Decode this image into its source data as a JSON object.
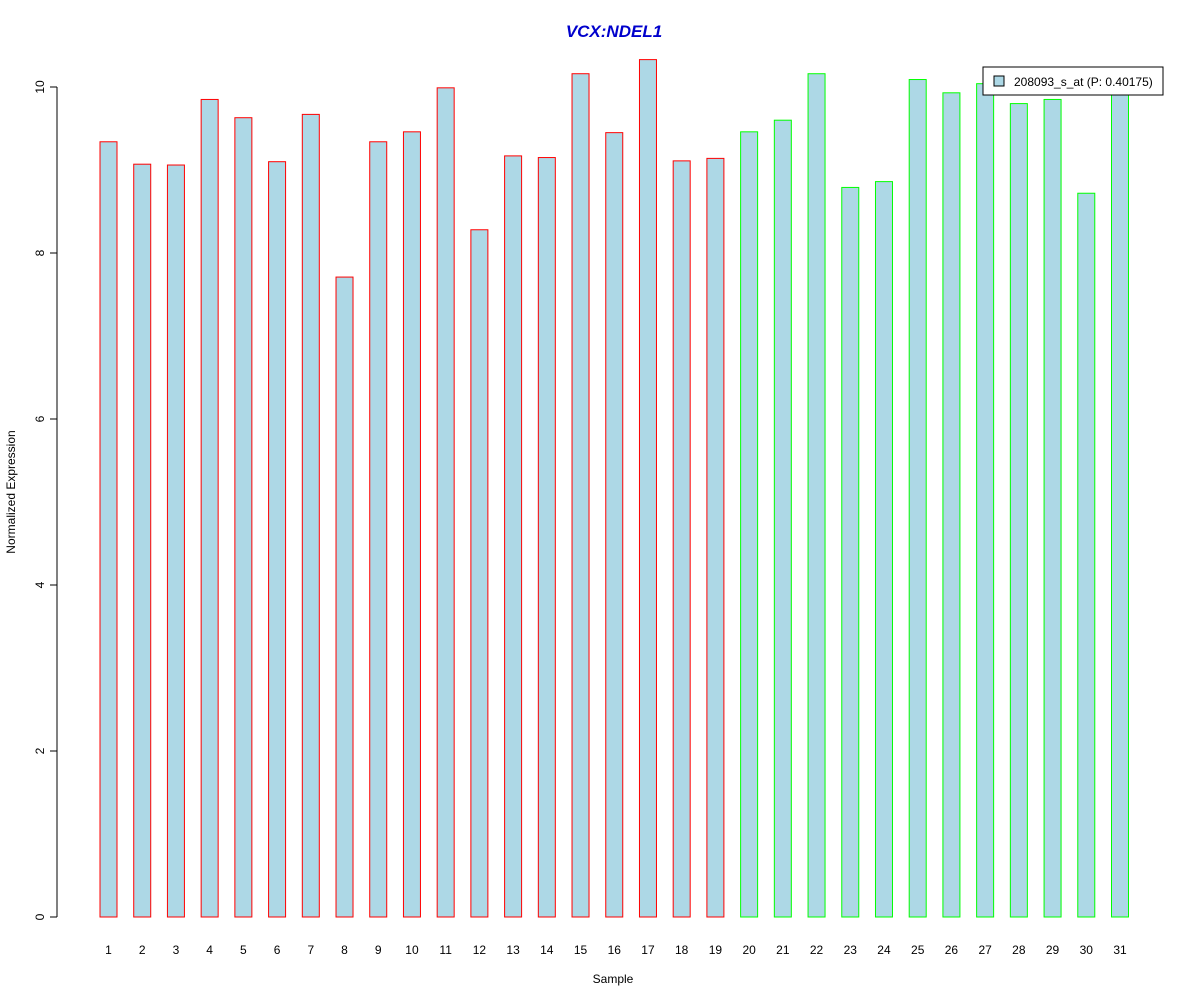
{
  "chart_data": {
    "type": "bar",
    "title": "VCX:NDEL1",
    "xlabel": "Sample",
    "ylabel": "Normalized Expression",
    "ylim": [
      0,
      10.35
    ],
    "yticks": [
      0,
      2,
      4,
      6,
      8,
      10
    ],
    "grid": false,
    "legend_position": "top-right",
    "categories": [
      "1",
      "2",
      "3",
      "4",
      "5",
      "6",
      "7",
      "8",
      "9",
      "10",
      "11",
      "12",
      "13",
      "14",
      "15",
      "16",
      "17",
      "18",
      "19",
      "20",
      "21",
      "22",
      "23",
      "24",
      "25",
      "26",
      "27",
      "28",
      "29",
      "30",
      "31"
    ],
    "series": [
      {
        "name": "208093_s_at (P: 0.40175)",
        "values": [
          9.34,
          9.07,
          9.06,
          9.85,
          9.63,
          9.1,
          9.67,
          7.71,
          9.34,
          9.46,
          9.99,
          8.28,
          9.17,
          9.15,
          10.16,
          9.45,
          10.33,
          9.11,
          9.14,
          9.46,
          9.6,
          10.16,
          8.79,
          8.86,
          10.09,
          9.93,
          10.04,
          9.8,
          9.85,
          8.72,
          9.95
        ],
        "groups": [
          "a",
          "a",
          "a",
          "a",
          "a",
          "a",
          "a",
          "a",
          "a",
          "a",
          "a",
          "a",
          "a",
          "a",
          "a",
          "a",
          "a",
          "a",
          "a",
          "b",
          "b",
          "b",
          "b",
          "b",
          "b",
          "b",
          "b",
          "b",
          "b",
          "b",
          "b"
        ]
      }
    ],
    "colors": {
      "title": "#0000cc",
      "bar_fill": "#add8e6",
      "group_a_border": "#ff0000",
      "group_b_border": "#00ff00",
      "axis": "#000000"
    }
  }
}
